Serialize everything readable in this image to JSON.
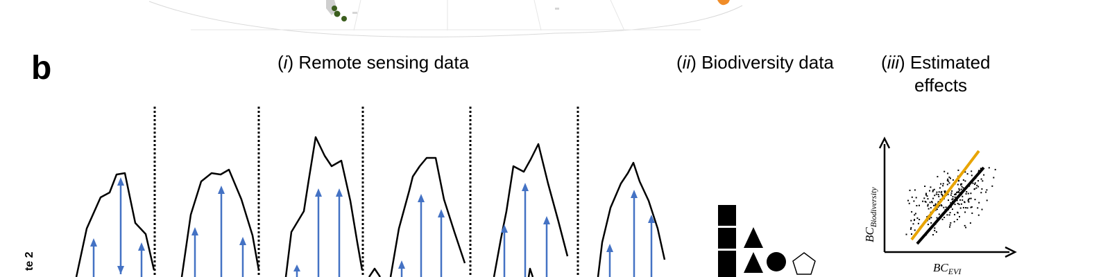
{
  "panel_label": "b",
  "side_label": "te 2",
  "headers": {
    "remote_sensing": {
      "num": "i",
      "text": "Remote sensing data"
    },
    "biodiversity": {
      "num": "ii",
      "text": "Biodiversity data"
    },
    "effects": {
      "num": "iii",
      "text": "Estimated",
      "text2": "effects"
    }
  },
  "axes": {
    "y_main": "BC",
    "y_sub": "Biodiversity",
    "x_main": "BC",
    "x_sub": "EVI"
  },
  "colors": {
    "blue": "#4472c4",
    "orange": "#e8a400",
    "black": "#000000",
    "grey": "#dddddd",
    "green": "#3b5e1e",
    "map_orange": "#f08c28"
  },
  "legend_shapes": [
    "square",
    "triangle",
    "circle",
    "pentagon"
  ]
}
